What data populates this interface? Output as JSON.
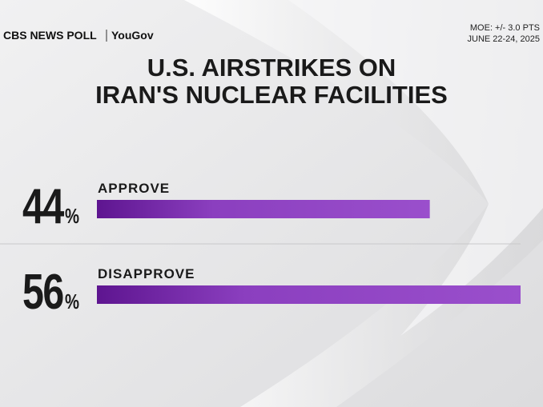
{
  "header": {
    "brand": "CBS NEWS POLL",
    "partner": "YouGov",
    "moe": "MOE: +/- 3.0 PTS",
    "dates": "JUNE 22-24, 2025"
  },
  "chart_data": {
    "type": "bar",
    "orientation": "horizontal",
    "title": [
      "U.S. AIRSTRIKES ON",
      "IRAN'S NUCLEAR FACILITIES"
    ],
    "categories": [
      "APPROVE",
      "DISAPPROVE"
    ],
    "values": [
      44,
      56
    ],
    "value_labels": [
      "44%",
      "56%"
    ],
    "color": "#8b3fbf"
  }
}
